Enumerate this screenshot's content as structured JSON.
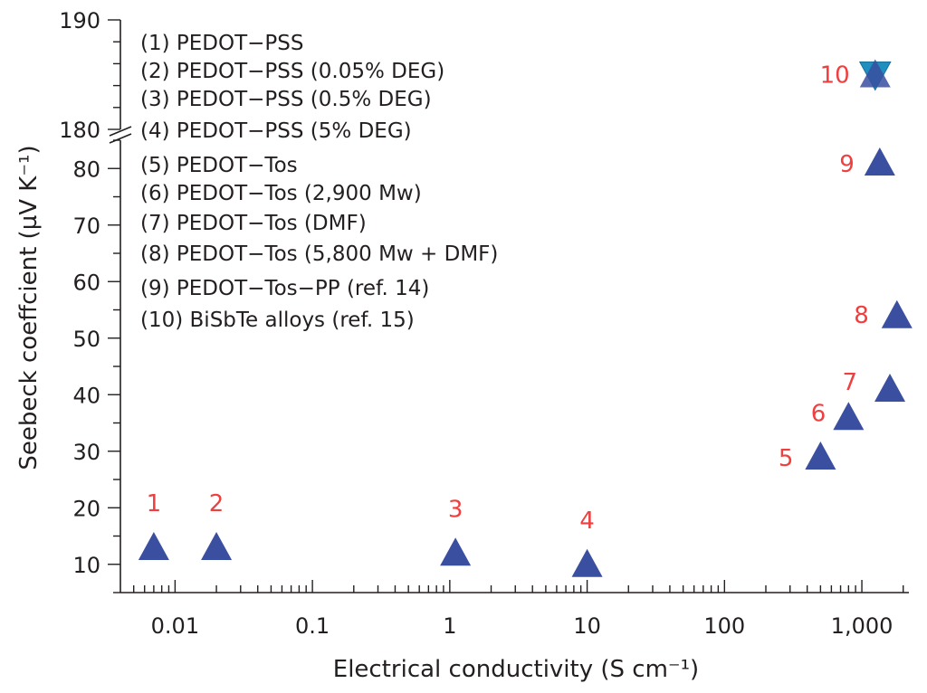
{
  "chart_data": {
    "type": "scatter",
    "title": "",
    "xlabel": "Electrical conductivity (S cm⁻¹)",
    "ylabel": "Seebeck coeffcient (µV K⁻¹)",
    "x_scale": "log",
    "xlim": [
      0.004,
      2200
    ],
    "ylim_lower": [
      5,
      85
    ],
    "ylim_upper": [
      180,
      190
    ],
    "axis_break": "between 85 and 180",
    "x_ticks": [
      0.01,
      0.1,
      1,
      10,
      100,
      1000
    ],
    "x_tick_labels": [
      "0.01",
      "0.1",
      "1",
      "10",
      "100",
      "1,000"
    ],
    "y_ticks": [
      10,
      20,
      30,
      40,
      50,
      60,
      70,
      80,
      180,
      190
    ],
    "y_tick_labels": [
      "10",
      "20",
      "30",
      "40",
      "50",
      "60",
      "70",
      "80",
      "180",
      "190"
    ],
    "legend_placement": "top-left",
    "legend": [
      "(1) PEDOT−PSS",
      "(2) PEDOT−PSS (0.05% DEG)",
      "(3) PEDOT−PSS (0.5% DEG)",
      "(4) PEDOT−PSS (5% DEG)",
      "(5) PEDOT−Tos",
      "(6) PEDOT−Tos (2,900 Mw)",
      "(7) PEDOT−Tos (DMF)",
      "(8) PEDOT−Tos (5,800 Mw + DMF)",
      "(9) PEDOT−Tos−PP (ref. 14)",
      "(10) BiSbTe alloys (ref. 15)"
    ],
    "points": [
      {
        "label": "1",
        "x": 0.007,
        "y": 13,
        "marker": "triangle-up"
      },
      {
        "label": "2",
        "x": 0.02,
        "y": 13,
        "marker": "triangle-up"
      },
      {
        "label": "3",
        "x": 1.1,
        "y": 12,
        "marker": "triangle-up"
      },
      {
        "label": "4",
        "x": 10,
        "y": 10,
        "marker": "triangle-up"
      },
      {
        "label": "5",
        "x": 500,
        "y": 29,
        "marker": "triangle-up"
      },
      {
        "label": "6",
        "x": 800,
        "y": 36,
        "marker": "triangle-up"
      },
      {
        "label": "7",
        "x": 1600,
        "y": 41,
        "marker": "triangle-up"
      },
      {
        "label": "8",
        "x": 1800,
        "y": 54,
        "marker": "triangle-up"
      },
      {
        "label": "9",
        "x": 1350,
        "y": 81,
        "marker": "triangle-up"
      },
      {
        "label": "10",
        "x": 1250,
        "y": 185,
        "marker": "star-of-david"
      }
    ],
    "colors": {
      "marker_fill": "#3a4fa0",
      "star_fill": "#1f8fc0",
      "point_label": "#ef3f3f",
      "axis": "#231f20"
    }
  }
}
